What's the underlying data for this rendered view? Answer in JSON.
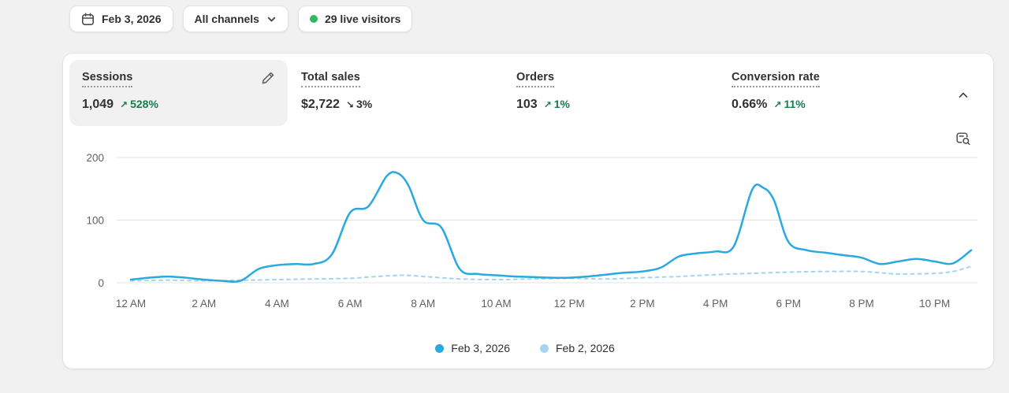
{
  "toolbar": {
    "date_label": "Feb 3, 2026",
    "channels_label": "All channels",
    "live_label": "29 live visitors",
    "live_dot_color": "#2eb85f"
  },
  "trend_colors": {
    "positive": "#177c4d",
    "neutral": "#303030"
  },
  "metrics": [
    {
      "label": "Sessions",
      "value": "1,049",
      "arrow": "↗",
      "delta": "528%",
      "trend": "positive",
      "selected": true
    },
    {
      "label": "Total sales",
      "value": "$2,722",
      "arrow": "↘",
      "delta": "3%",
      "trend": "neutral",
      "selected": false
    },
    {
      "label": "Orders",
      "value": "103",
      "arrow": "↗",
      "delta": "1%",
      "trend": "positive",
      "selected": false
    },
    {
      "label": "Conversion rate",
      "value": "0.66%",
      "arrow": "↗",
      "delta": "11%",
      "trend": "positive",
      "selected": false
    }
  ],
  "chart_data": {
    "type": "line",
    "x_ticks": [
      "12 AM",
      "2 AM",
      "4 AM",
      "6 AM",
      "8 AM",
      "10 AM",
      "12 PM",
      "2 PM",
      "4 PM",
      "6 PM",
      "8 PM",
      "10 PM"
    ],
    "x_tick_hours": [
      0,
      2,
      4,
      6,
      8,
      10,
      12,
      14,
      16,
      18,
      20,
      22
    ],
    "y_ticks": [
      0,
      100,
      200
    ],
    "ylim": [
      0,
      200
    ],
    "grid": true,
    "legend_position": "bottom",
    "series": [
      {
        "name": "Feb 3, 2026",
        "color": "#2aa8e0",
        "style": "solid",
        "x": [
          0,
          0.5,
          1,
          1.5,
          2,
          2.5,
          3,
          3.5,
          4,
          4.5,
          5,
          5.5,
          6,
          6.5,
          7,
          7.3,
          7.6,
          8,
          8.5,
          9,
          9.5,
          10,
          10.5,
          11,
          11.5,
          12,
          12.5,
          13,
          13.5,
          14,
          14.5,
          15,
          15.5,
          16,
          16.5,
          17,
          17.3,
          17.6,
          18,
          18.5,
          19,
          19.5,
          20,
          20.5,
          21,
          21.5,
          22,
          22.5,
          23
        ],
        "values": [
          5,
          8,
          10,
          8,
          5,
          3,
          3,
          22,
          28,
          30,
          30,
          45,
          112,
          122,
          170,
          175,
          155,
          100,
          88,
          22,
          14,
          12,
          10,
          9,
          8,
          8,
          10,
          13,
          16,
          18,
          24,
          42,
          47,
          50,
          58,
          148,
          152,
          132,
          65,
          52,
          48,
          44,
          40,
          30,
          34,
          38,
          34,
          31,
          52
        ]
      },
      {
        "name": "Feb 2, 2026",
        "color": "#a3d4f0",
        "style": "dashed",
        "x": [
          0,
          1,
          2,
          3,
          4,
          5,
          6,
          6.5,
          7,
          7.5,
          8,
          8.5,
          9,
          10,
          11,
          12,
          13,
          14,
          15,
          16,
          17,
          18,
          19,
          20,
          20.5,
          21,
          22,
          22.5,
          23
        ],
        "values": [
          3,
          4,
          3,
          4,
          5,
          6,
          7,
          9,
          11,
          12,
          10,
          8,
          6,
          5,
          6,
          7,
          6,
          8,
          10,
          13,
          15,
          17,
          18,
          18,
          16,
          14,
          15,
          18,
          26
        ]
      }
    ],
    "legend": [
      {
        "label": "Feb 3, 2026",
        "color": "#2aa8e0"
      },
      {
        "label": "Feb 2, 2026",
        "color": "#a3d4f0"
      }
    ]
  }
}
